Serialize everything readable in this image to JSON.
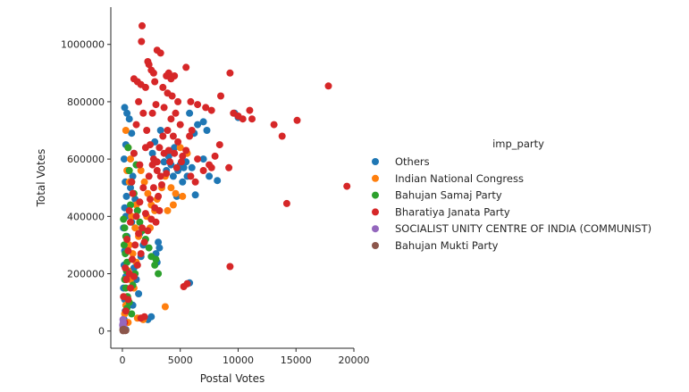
{
  "chart_data": {
    "type": "scatter",
    "title": "",
    "xlabel": "Postal Votes",
    "ylabel": "Total Votes",
    "xlim": [
      -1000,
      20000
    ],
    "ylim": [
      -60000,
      1130000
    ],
    "x_ticks": [
      0,
      5000,
      10000,
      15000,
      20000
    ],
    "x_tick_labels": [
      "0",
      "5000",
      "10000",
      "15000",
      "20000"
    ],
    "y_ticks": [
      0,
      200000,
      400000,
      600000,
      800000,
      1000000
    ],
    "y_tick_labels": [
      "0",
      "200000",
      "400000",
      "600000",
      "800000",
      "1000000"
    ],
    "grid": false,
    "legend": {
      "title": "imp_party",
      "placement": "right"
    },
    "series": [
      {
        "name": "Others",
        "color": "#1f77b4",
        "points": [
          [
            200,
            780000
          ],
          [
            400,
            760000
          ],
          [
            300,
            650000
          ],
          [
            150,
            600000
          ],
          [
            500,
            560000
          ],
          [
            250,
            520000
          ],
          [
            350,
            470000
          ],
          [
            200,
            430000
          ],
          [
            300,
            400000
          ],
          [
            100,
            360000
          ],
          [
            400,
            330000
          ],
          [
            200,
            280000
          ],
          [
            150,
            230000
          ],
          [
            300,
            190000
          ],
          [
            100,
            150000
          ],
          [
            200,
            110000
          ],
          [
            250,
            70000
          ],
          [
            150,
            40000
          ],
          [
            100,
            15000
          ],
          [
            300,
            5000
          ],
          [
            600,
            740000
          ],
          [
            800,
            690000
          ],
          [
            1000,
            620000
          ],
          [
            1200,
            580000
          ],
          [
            900,
            540000
          ],
          [
            700,
            500000
          ],
          [
            1100,
            460000
          ],
          [
            1300,
            420000
          ],
          [
            800,
            380000
          ],
          [
            1500,
            340000
          ],
          [
            1800,
            300000
          ],
          [
            1600,
            260000
          ],
          [
            1000,
            220000
          ],
          [
            1200,
            180000
          ],
          [
            1400,
            130000
          ],
          [
            900,
            90000
          ],
          [
            2500,
            50000
          ],
          [
            2200,
            40000
          ],
          [
            3200,
            290000
          ],
          [
            3100,
            310000
          ],
          [
            2900,
            270000
          ],
          [
            3000,
            240000
          ],
          [
            4500,
            640000
          ],
          [
            5000,
            580000
          ],
          [
            5300,
            570000
          ],
          [
            5500,
            590000
          ],
          [
            4800,
            560000
          ],
          [
            5600,
            540000
          ],
          [
            6000,
            570000
          ],
          [
            5200,
            520000
          ],
          [
            4700,
            470000
          ],
          [
            6200,
            690000
          ],
          [
            6500,
            720000
          ],
          [
            7000,
            600000
          ],
          [
            7500,
            540000
          ],
          [
            8200,
            525000
          ],
          [
            5800,
            760000
          ],
          [
            7000,
            730000
          ],
          [
            7300,
            700000
          ],
          [
            10000,
            745000
          ],
          [
            9700,
            760000
          ],
          [
            6300,
            475000
          ],
          [
            5600,
            165000
          ],
          [
            5800,
            168000
          ],
          [
            4000,
            610000
          ],
          [
            4200,
            580000
          ],
          [
            3600,
            590000
          ],
          [
            3800,
            560000
          ],
          [
            4400,
            540000
          ],
          [
            2800,
            660000
          ],
          [
            2600,
            620000
          ],
          [
            3300,
            700000
          ]
        ]
      },
      {
        "name": "Indian National Congress",
        "color": "#ff7f0e",
        "points": [
          [
            300,
            700000
          ],
          [
            500,
            640000
          ],
          [
            700,
            600000
          ],
          [
            400,
            560000
          ],
          [
            600,
            520000
          ],
          [
            900,
            480000
          ],
          [
            1200,
            440000
          ],
          [
            800,
            400000
          ],
          [
            1100,
            360000
          ],
          [
            1400,
            330000
          ],
          [
            600,
            300000
          ],
          [
            900,
            270000
          ],
          [
            1200,
            240000
          ],
          [
            500,
            210000
          ],
          [
            700,
            180000
          ],
          [
            1000,
            150000
          ],
          [
            400,
            120000
          ],
          [
            300,
            90000
          ],
          [
            200,
            60000
          ],
          [
            500,
            30000
          ],
          [
            1600,
            560000
          ],
          [
            1900,
            520000
          ],
          [
            2200,
            480000
          ],
          [
            2500,
            440000
          ],
          [
            2100,
            400000
          ],
          [
            2400,
            360000
          ],
          [
            2800,
            420000
          ],
          [
            3000,
            460000
          ],
          [
            3400,
            500000
          ],
          [
            3700,
            540000
          ],
          [
            4200,
            500000
          ],
          [
            4600,
            480000
          ],
          [
            5200,
            470000
          ],
          [
            4400,
            440000
          ],
          [
            3900,
            420000
          ],
          [
            5000,
            640000
          ],
          [
            5600,
            620000
          ],
          [
            3700,
            85000
          ],
          [
            1800,
            40000
          ],
          [
            1300,
            45000
          ]
        ]
      },
      {
        "name": "Bahujan Samaj Party",
        "color": "#2ca02c",
        "points": [
          [
            100,
            390000
          ],
          [
            200,
            360000
          ],
          [
            300,
            330000
          ],
          [
            150,
            300000
          ],
          [
            250,
            270000
          ],
          [
            400,
            240000
          ],
          [
            350,
            210000
          ],
          [
            200,
            180000
          ],
          [
            300,
            150000
          ],
          [
            450,
            120000
          ],
          [
            600,
            560000
          ],
          [
            800,
            520000
          ],
          [
            1000,
            480000
          ],
          [
            700,
            440000
          ],
          [
            1300,
            420000
          ],
          [
            1500,
            380000
          ],
          [
            1700,
            350000
          ],
          [
            2000,
            320000
          ],
          [
            2300,
            290000
          ],
          [
            2500,
            260000
          ],
          [
            2800,
            230000
          ],
          [
            3100,
            200000
          ],
          [
            2900,
            250000
          ],
          [
            1100,
            200000
          ],
          [
            900,
            160000
          ],
          [
            600,
            100000
          ],
          [
            400,
            80000
          ],
          [
            800,
            60000
          ],
          [
            500,
            640000
          ],
          [
            1200,
            580000
          ]
        ]
      },
      {
        "name": "Bharatiya Janata Party",
        "color": "#d62728",
        "points": [
          [
            1700,
            1065000
          ],
          [
            1650,
            1010000
          ],
          [
            2300,
            930000
          ],
          [
            2200,
            940000
          ],
          [
            3000,
            980000
          ],
          [
            3300,
            970000
          ],
          [
            2500,
            910000
          ],
          [
            2700,
            900000
          ],
          [
            3800,
            890000
          ],
          [
            4200,
            880000
          ],
          [
            4000,
            900000
          ],
          [
            4500,
            890000
          ],
          [
            5500,
            920000
          ],
          [
            9300,
            900000
          ],
          [
            17800,
            855000
          ],
          [
            1000,
            880000
          ],
          [
            1300,
            870000
          ],
          [
            1600,
            860000
          ],
          [
            2000,
            850000
          ],
          [
            2800,
            870000
          ],
          [
            3500,
            850000
          ],
          [
            3900,
            830000
          ],
          [
            4300,
            820000
          ],
          [
            4800,
            800000
          ],
          [
            5900,
            800000
          ],
          [
            6500,
            790000
          ],
          [
            7200,
            780000
          ],
          [
            8500,
            820000
          ],
          [
            7700,
            770000
          ],
          [
            9600,
            760000
          ],
          [
            10000,
            750000
          ],
          [
            10400,
            740000
          ],
          [
            11000,
            770000
          ],
          [
            11200,
            740000
          ],
          [
            13100,
            720000
          ],
          [
            13800,
            680000
          ],
          [
            15100,
            735000
          ],
          [
            19400,
            505000
          ],
          [
            14200,
            445000
          ],
          [
            9300,
            225000
          ],
          [
            5300,
            155000
          ],
          [
            5600,
            165000
          ],
          [
            8400,
            650000
          ],
          [
            8000,
            610000
          ],
          [
            7500,
            580000
          ],
          [
            9200,
            570000
          ],
          [
            7700,
            570000
          ],
          [
            7000,
            560000
          ],
          [
            6500,
            600000
          ],
          [
            6000,
            700000
          ],
          [
            5800,
            680000
          ],
          [
            5500,
            630000
          ],
          [
            5200,
            610000
          ],
          [
            5900,
            540000
          ],
          [
            6300,
            520000
          ],
          [
            4800,
            660000
          ],
          [
            4500,
            620000
          ],
          [
            4100,
            590000
          ],
          [
            3800,
            550000
          ],
          [
            3400,
            510000
          ],
          [
            3100,
            470000
          ],
          [
            2800,
            430000
          ],
          [
            2500,
            390000
          ],
          [
            2200,
            350000
          ],
          [
            1900,
            310000
          ],
          [
            1600,
            270000
          ],
          [
            1300,
            230000
          ],
          [
            1000,
            190000
          ],
          [
            700,
            150000
          ],
          [
            500,
            110000
          ],
          [
            300,
            70000
          ],
          [
            200,
            30000
          ],
          [
            150,
            10000
          ],
          [
            100,
            120000
          ],
          [
            250,
            220000
          ],
          [
            400,
            320000
          ],
          [
            600,
            420000
          ],
          [
            800,
            520000
          ],
          [
            1000,
            620000
          ],
          [
            1200,
            720000
          ],
          [
            1400,
            800000
          ],
          [
            1800,
            760000
          ],
          [
            2100,
            700000
          ],
          [
            2400,
            650000
          ],
          [
            2700,
            600000
          ],
          [
            3000,
            560000
          ],
          [
            3300,
            540000
          ],
          [
            3600,
            620000
          ],
          [
            3900,
            700000
          ],
          [
            4200,
            740000
          ],
          [
            4600,
            760000
          ],
          [
            5000,
            720000
          ],
          [
            4400,
            680000
          ],
          [
            3600,
            780000
          ],
          [
            2900,
            790000
          ],
          [
            2600,
            760000
          ],
          [
            2000,
            640000
          ],
          [
            1500,
            580000
          ],
          [
            900,
            480000
          ],
          [
            700,
            380000
          ],
          [
            500,
            280000
          ],
          [
            350,
            180000
          ],
          [
            1200,
            400000
          ],
          [
            1500,
            450000
          ],
          [
            1800,
            500000
          ],
          [
            2300,
            540000
          ],
          [
            2600,
            580000
          ],
          [
            3200,
            640000
          ],
          [
            3500,
            680000
          ],
          [
            2000,
            410000
          ],
          [
            2400,
            460000
          ],
          [
            2700,
            500000
          ],
          [
            1700,
            360000
          ],
          [
            1100,
            300000
          ],
          [
            850,
            250000
          ],
          [
            600,
            200000
          ],
          [
            1900,
            50000
          ],
          [
            1600,
            45000
          ],
          [
            3000,
            590000
          ],
          [
            4000,
            630000
          ],
          [
            4700,
            570000
          ],
          [
            5100,
            590000
          ],
          [
            3200,
            420000
          ],
          [
            2900,
            380000
          ],
          [
            1400,
            340000
          ]
        ]
      },
      {
        "name": "SOCIALIST UNITY CENTRE OF INDIA (COMMUNIST)",
        "color": "#9467bd",
        "points": [
          [
            50,
            40000
          ],
          [
            80,
            30000
          ],
          [
            30,
            20000
          ],
          [
            60,
            12000
          ],
          [
            100,
            8000
          ],
          [
            40,
            25000
          ],
          [
            120,
            15000
          ],
          [
            90,
            5000
          ]
        ]
      },
      {
        "name": "Bahujan Mukti Party",
        "color": "#8c564b",
        "points": [
          [
            40,
            5000
          ],
          [
            70,
            3000
          ],
          [
            100,
            2000
          ],
          [
            150,
            4000
          ],
          [
            200,
            3500
          ],
          [
            250,
            1500
          ],
          [
            120,
            6000
          ],
          [
            180,
            2500
          ],
          [
            60,
            1000
          ],
          [
            300,
            2000
          ]
        ]
      }
    ]
  }
}
